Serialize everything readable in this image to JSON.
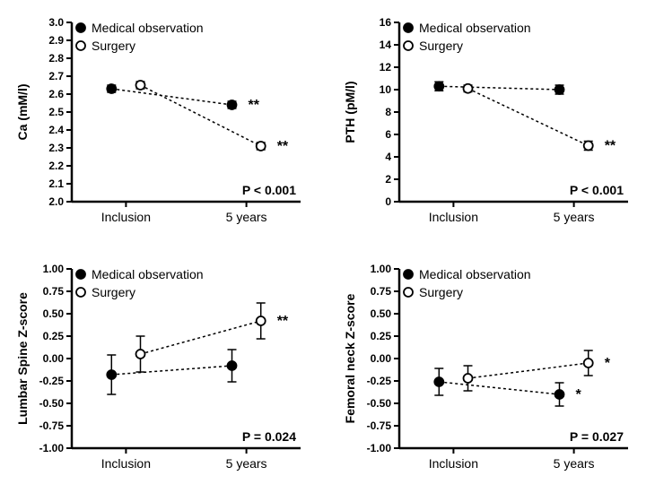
{
  "global": {
    "legend": {
      "medical_label": "Medical observation",
      "surgery_label": "Surgery",
      "medical_marker_fill": "#000000",
      "surgery_marker_fill": "#ffffff",
      "marker_stroke": "#000000",
      "font_size": 14,
      "font_weight": "normal"
    },
    "axis_color": "#000000",
    "line_color": "#000000",
    "line_dash": "3,3",
    "tick_font_size": 12,
    "label_font_size": 14,
    "pvalue_font_size": 14,
    "pvalue_font_weight": "bold",
    "marker_radius": 5,
    "error_cap": 5,
    "x_categories": [
      "Inclusion",
      "5 years"
    ]
  },
  "panels": [
    {
      "id": "ca",
      "ylabel": "Ca (mM/l)",
      "ylim": [
        2.0,
        3.0
      ],
      "ytick_step": 0.1,
      "y_decimals": 1,
      "pvalue": "P < 0.001",
      "x_offset_med": -0.12,
      "x_offset_surg": 0.12,
      "series": {
        "medical": {
          "x": [
            0,
            1
          ],
          "y": [
            2.63,
            2.54
          ],
          "err": [
            0.02,
            0.02
          ],
          "sig": [
            "",
            "**"
          ]
        },
        "surgery": {
          "x": [
            0,
            1
          ],
          "y": [
            2.65,
            2.31
          ],
          "err": [
            0.02,
            0.02
          ],
          "sig": [
            "",
            "**"
          ]
        }
      }
    },
    {
      "id": "pth",
      "ylabel": "PTH (pM/l)",
      "ylim": [
        0,
        16
      ],
      "ytick_step": 2,
      "y_decimals": 0,
      "pvalue": "P < 0.001",
      "x_offset_med": -0.12,
      "x_offset_surg": 0.12,
      "series": {
        "medical": {
          "x": [
            0,
            1
          ],
          "y": [
            10.3,
            10.0
          ],
          "err": [
            0.4,
            0.4
          ],
          "sig": [
            "",
            ""
          ]
        },
        "surgery": {
          "x": [
            0,
            1
          ],
          "y": [
            10.1,
            5.0
          ],
          "err": [
            0.3,
            0.4
          ],
          "sig": [
            "",
            "**"
          ]
        }
      }
    },
    {
      "id": "lumbar",
      "ylabel": "Lumbar Spine Z-score",
      "ylim": [
        -1.0,
        1.0
      ],
      "ytick_step": 0.25,
      "y_decimals": 2,
      "pvalue": "P = 0.024",
      "x_offset_med": -0.12,
      "x_offset_surg": 0.12,
      "series": {
        "medical": {
          "x": [
            0,
            1
          ],
          "y": [
            -0.18,
            -0.08
          ],
          "err": [
            0.22,
            0.18
          ],
          "sig": [
            "",
            ""
          ]
        },
        "surgery": {
          "x": [
            0,
            1
          ],
          "y": [
            0.05,
            0.42
          ],
          "err": [
            0.2,
            0.2
          ],
          "sig": [
            "",
            "**"
          ]
        }
      }
    },
    {
      "id": "femoral",
      "ylabel": "Femoral neck Z-score",
      "ylim": [
        -1.0,
        1.0
      ],
      "ytick_step": 0.25,
      "y_decimals": 2,
      "pvalue": "P = 0.027",
      "x_offset_med": -0.12,
      "x_offset_surg": 0.12,
      "series": {
        "medical": {
          "x": [
            0,
            1
          ],
          "y": [
            -0.26,
            -0.4
          ],
          "err": [
            0.15,
            0.13
          ],
          "sig": [
            "",
            "*"
          ]
        },
        "surgery": {
          "x": [
            0,
            1
          ],
          "y": [
            -0.22,
            -0.05
          ],
          "err": [
            0.14,
            0.14
          ],
          "sig": [
            "",
            "*"
          ]
        }
      }
    }
  ]
}
